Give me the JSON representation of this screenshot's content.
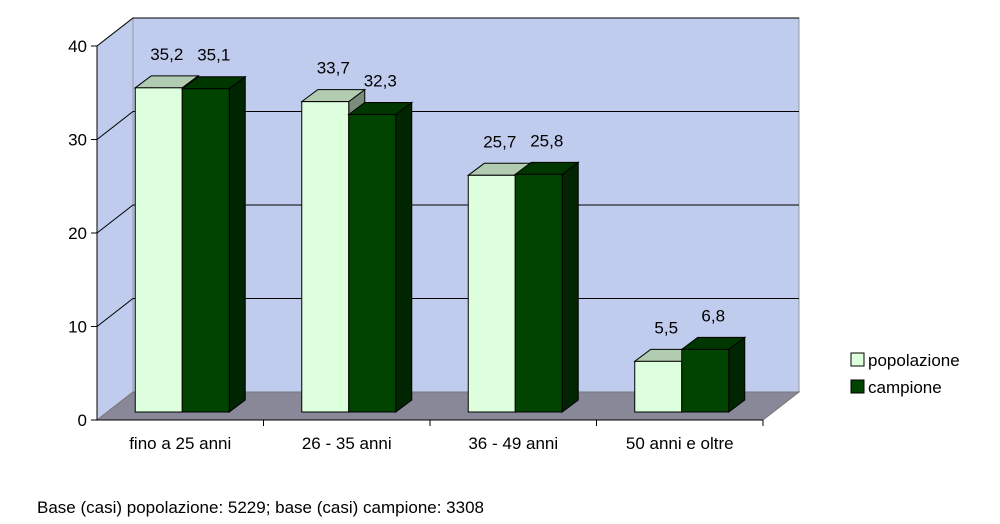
{
  "chart_data": {
    "type": "bar",
    "categories": [
      "fino a 25 anni",
      "26 - 35 anni",
      "36 - 49 anni",
      "50 anni e oltre"
    ],
    "series": [
      {
        "name": "popolazione",
        "values": [
          35.2,
          33.7,
          25.7,
          5.5
        ],
        "labels": [
          "35,2",
          "33,7",
          "25,7",
          "5,5"
        ],
        "color": "#DDFFDD"
      },
      {
        "name": "campione",
        "values": [
          35.1,
          32.3,
          25.8,
          6.8
        ],
        "labels": [
          "35,1",
          "32,3",
          "25,8",
          "6,8"
        ],
        "color": "#004400"
      }
    ],
    "ylim": [
      0,
      40
    ],
    "yticks": [
      "0",
      "10",
      "20",
      "30",
      "40"
    ],
    "grid": true,
    "legend_position": "right",
    "three_d": true,
    "colors": {
      "wall": "#C0CCEE",
      "floor": "#888899",
      "grid": "#000000"
    }
  },
  "footnote": "Base (casi) popolazione: 5229; base (casi) campione: 3308"
}
